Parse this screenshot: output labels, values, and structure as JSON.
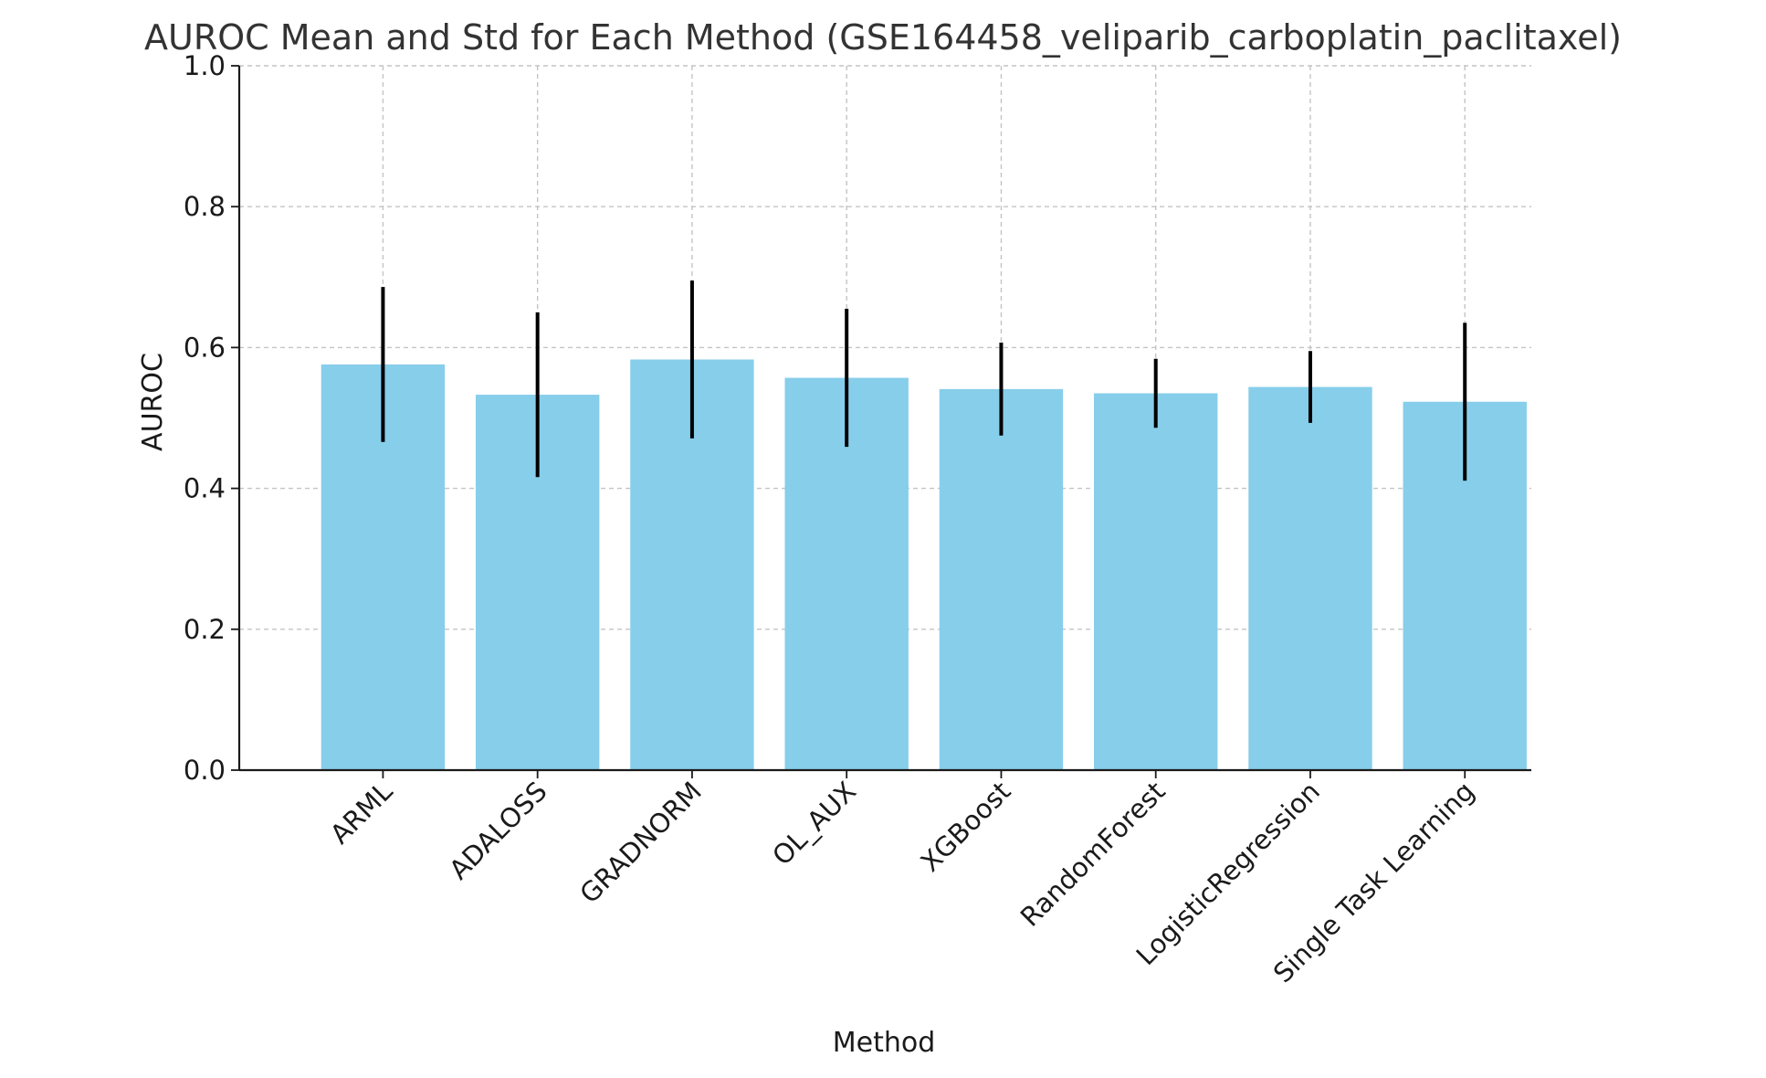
{
  "chart_data": {
    "type": "bar",
    "title": "AUROC Mean and Std for Each Method (GSE164458_veliparib_carboplatin_paclitaxel)",
    "xlabel": "Method",
    "ylabel": "AUROC",
    "ylim": [
      0,
      1.0
    ],
    "yticks": [
      "0.0",
      "0.2",
      "0.4",
      "0.6",
      "0.8",
      "1.0"
    ],
    "grid": true,
    "bar_color": "#87ceeb",
    "error_bar_color": "#000000",
    "categories": [
      "ARML",
      "ADALOSS",
      "GRADNORM",
      "OL_AUX",
      "XGBoost",
      "RandomForest",
      "LogisticRegression",
      "Single Task Learning"
    ],
    "values": [
      0.576,
      0.533,
      0.583,
      0.557,
      0.541,
      0.535,
      0.544,
      0.523
    ],
    "errors": [
      0.11,
      0.117,
      0.112,
      0.098,
      0.066,
      0.049,
      0.051,
      0.112
    ]
  }
}
